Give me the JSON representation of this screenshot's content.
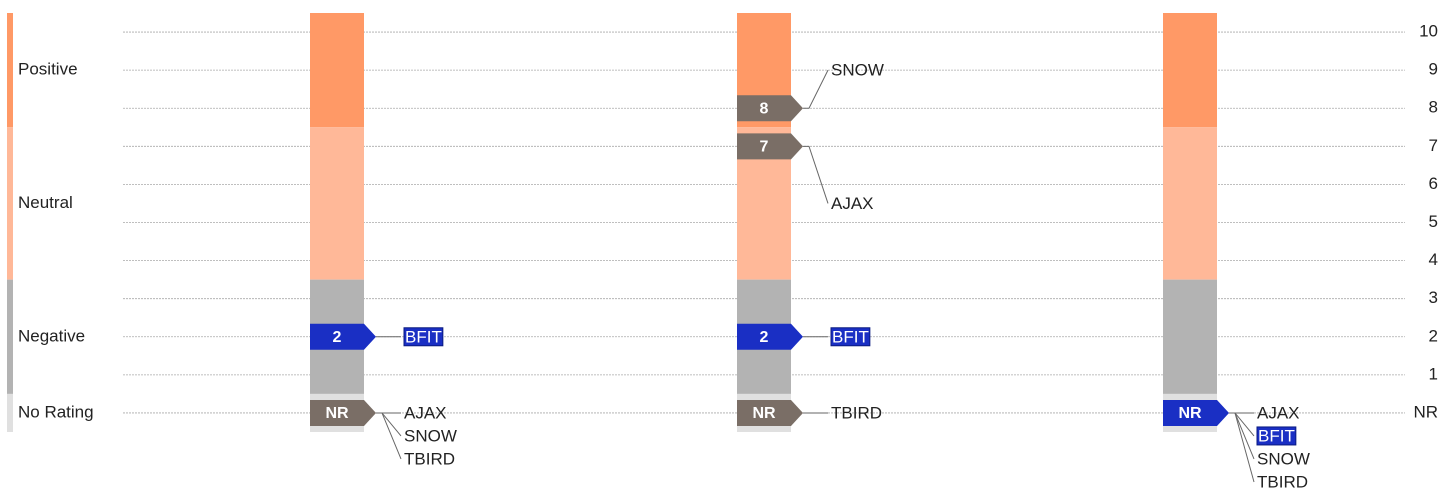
{
  "chart_data": {
    "type": "rating-strip",
    "ylim": [
      -0.5,
      10.5
    ],
    "yticks": [
      {
        "value": 0,
        "label": "NR"
      },
      1,
      2,
      3,
      4,
      5,
      6,
      7,
      8,
      9,
      10
    ],
    "grid": true,
    "bands": [
      {
        "name": "Positive",
        "from": 7.5,
        "to": 10.5,
        "color": "#ff9966"
      },
      {
        "name": "Neutral",
        "from": 3.5,
        "to": 7.5,
        "color": "#ffb898"
      },
      {
        "name": "Negative",
        "from": 0.5,
        "to": 3.5,
        "color": "#b3b3b3"
      },
      {
        "name": "No Rating",
        "from": -0.5,
        "to": 0.5,
        "color": "#e0e0e0"
      }
    ],
    "columns": [
      {
        "markers": [
          {
            "value": 2,
            "color": "#1a2fc4",
            "tags": [
              {
                "text": "BFIT",
                "highlight": true
              }
            ]
          },
          {
            "value": 0,
            "label": "NR",
            "color": "#7a6e66",
            "tags": [
              {
                "text": "AJAX"
              },
              {
                "text": "SNOW"
              },
              {
                "text": "TBIRD"
              }
            ]
          }
        ]
      },
      {
        "markers": [
          {
            "value": 8,
            "color": "#7a6e66",
            "tags": [
              {
                "text": "SNOW"
              }
            ]
          },
          {
            "value": 7,
            "color": "#7a6e66",
            "tags": [
              {
                "text": "AJAX"
              }
            ]
          },
          {
            "value": 2,
            "color": "#1a2fc4",
            "tags": [
              {
                "text": "BFIT",
                "highlight": true
              }
            ]
          },
          {
            "value": 0,
            "label": "NR",
            "color": "#7a6e66",
            "tags": [
              {
                "text": "TBIRD"
              }
            ]
          }
        ]
      },
      {
        "markers": [
          {
            "value": 0,
            "label": "NR",
            "color": "#1a2fc4",
            "tags": [
              {
                "text": "AJAX"
              },
              {
                "text": "BFIT",
                "highlight": true
              },
              {
                "text": "SNOW"
              },
              {
                "text": "TBIRD"
              }
            ]
          }
        ]
      }
    ]
  }
}
